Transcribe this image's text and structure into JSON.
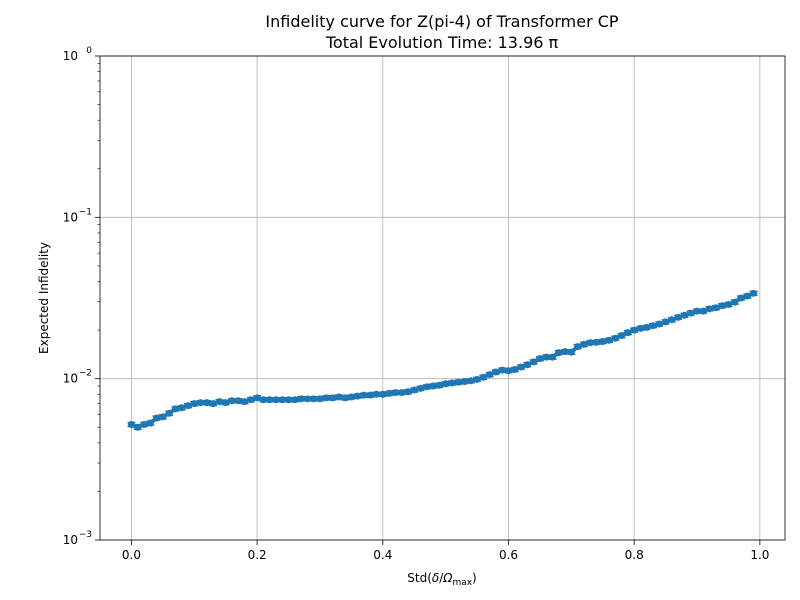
{
  "chart_data": {
    "type": "scatter",
    "title_line1": "Infidelity curve for Z(pi-4) of Transformer CP",
    "title_line2": "Total Evolution Time: 13.96 π",
    "xlabel_prefix": "Std(",
    "xlabel_delta": "δ",
    "xlabel_slash": "/",
    "xlabel_omega": "Ω",
    "xlabel_sub": "max",
    "xlabel_suffix": ")",
    "ylabel": "Expected Infidelity",
    "x_ticks": [
      0.0,
      0.2,
      0.4,
      0.6,
      0.8,
      1.0
    ],
    "x_tick_labels": [
      "0.0",
      "0.2",
      "0.4",
      "0.6",
      "0.8",
      "1.0"
    ],
    "y_scale": "log",
    "y_ticks": [
      0.001,
      0.01,
      0.1,
      1
    ],
    "y_tick_bases": [
      "10",
      "10",
      "10",
      "10"
    ],
    "y_tick_exps": [
      "−3",
      "−2",
      "−1",
      "0"
    ],
    "xlim": [
      -0.05,
      1.04
    ],
    "ylim": [
      0.001,
      1
    ],
    "grid": true,
    "color": "#1f77b4",
    "x": [
      0.0,
      0.01,
      0.02,
      0.03,
      0.04,
      0.05,
      0.06,
      0.07,
      0.08,
      0.09,
      0.1,
      0.11,
      0.12,
      0.13,
      0.14,
      0.15,
      0.16,
      0.17,
      0.18,
      0.19,
      0.2,
      0.21,
      0.22,
      0.23,
      0.24,
      0.25,
      0.26,
      0.27,
      0.28,
      0.29,
      0.3,
      0.31,
      0.32,
      0.33,
      0.34,
      0.35,
      0.36,
      0.37,
      0.38,
      0.39,
      0.4,
      0.41,
      0.42,
      0.43,
      0.44,
      0.45,
      0.46,
      0.47,
      0.48,
      0.49,
      0.5,
      0.51,
      0.52,
      0.53,
      0.54,
      0.55,
      0.56,
      0.57,
      0.58,
      0.59,
      0.6,
      0.61,
      0.62,
      0.63,
      0.64,
      0.65,
      0.66,
      0.67,
      0.68,
      0.69,
      0.7,
      0.71,
      0.72,
      0.73,
      0.74,
      0.75,
      0.76,
      0.77,
      0.78,
      0.79,
      0.8,
      0.81,
      0.82,
      0.83,
      0.84,
      0.85,
      0.86,
      0.87,
      0.88,
      0.89,
      0.9,
      0.91,
      0.92,
      0.93,
      0.94,
      0.95,
      0.96,
      0.97,
      0.98,
      0.99
    ],
    "y": [
      0.0052,
      0.005,
      0.0052,
      0.0053,
      0.0057,
      0.0058,
      0.0061,
      0.0065,
      0.0066,
      0.0068,
      0.007,
      0.0071,
      0.0071,
      0.007,
      0.0072,
      0.0071,
      0.0073,
      0.0073,
      0.0072,
      0.0074,
      0.0076,
      0.0074,
      0.0074,
      0.0074,
      0.0074,
      0.0074,
      0.0074,
      0.0075,
      0.0075,
      0.0075,
      0.0075,
      0.0076,
      0.0076,
      0.0077,
      0.0076,
      0.0077,
      0.0078,
      0.0079,
      0.0079,
      0.008,
      0.008,
      0.0081,
      0.0082,
      0.0082,
      0.0083,
      0.0085,
      0.0087,
      0.0089,
      0.009,
      0.0091,
      0.0093,
      0.0094,
      0.0095,
      0.0096,
      0.0097,
      0.0099,
      0.0102,
      0.0106,
      0.011,
      0.0113,
      0.0112,
      0.0114,
      0.0118,
      0.0122,
      0.0127,
      0.0133,
      0.0136,
      0.0136,
      0.0145,
      0.0147,
      0.0146,
      0.0158,
      0.0163,
      0.0167,
      0.0168,
      0.017,
      0.0173,
      0.0178,
      0.0185,
      0.0193,
      0.02,
      0.0205,
      0.0208,
      0.0213,
      0.0218,
      0.0225,
      0.0232,
      0.024,
      0.0247,
      0.0255,
      0.0262,
      0.0262,
      0.0271,
      0.0275,
      0.0283,
      0.0288,
      0.0298,
      0.0316,
      0.0325,
      0.0338
    ]
  }
}
